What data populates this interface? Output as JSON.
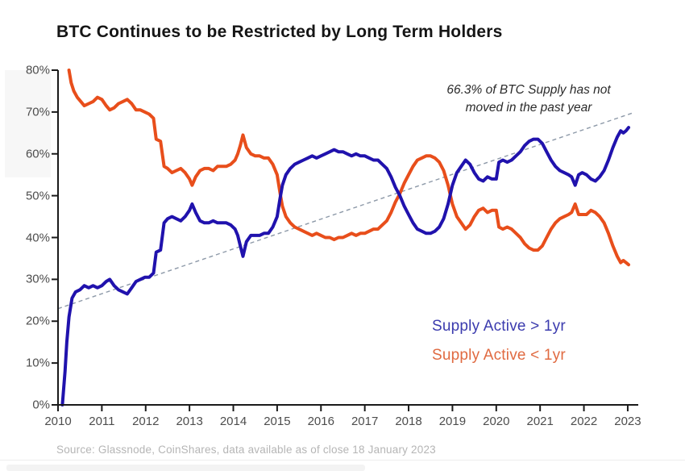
{
  "header": {
    "title": "BTC Continues to be Restricted by Long Term Holders"
  },
  "annotation": {
    "text": "66.3% of BTC Supply has not moved in the past year"
  },
  "legend": [
    {
      "label": "Supply  Active > 1yr",
      "color": "#3b3bae"
    },
    {
      "label": "Supply Active < 1yr",
      "color": "#e06a41"
    }
  ],
  "footer": {
    "source": "Source: Glassnode, CoinShares, data available as of close 18 January 2023"
  },
  "chart_data": {
    "type": "line",
    "title": "BTC Continues to be Restricted by Long Term Holders",
    "xlabel": "",
    "ylabel": "",
    "xlim": [
      2009.95,
      2023.3
    ],
    "ylim": [
      0,
      80
    ],
    "grid": false,
    "legend_position": "lower right",
    "x_ticks": [
      2010,
      2011,
      2012,
      2013,
      2014,
      2015,
      2016,
      2017,
      2018,
      2019,
      2020,
      2021,
      2022,
      2023
    ],
    "y_tick_values": [
      0,
      10,
      20,
      30,
      40,
      50,
      60,
      70,
      80
    ],
    "y_tick_suffix": "%",
    "annotation": "66.3% of BTC Supply has not moved in the past year",
    "axis_color": "#1a1a1a",
    "series": [
      {
        "name": "Supply Active > 1yr",
        "color": "#2012ad",
        "width": 4,
        "points": [
          [
            2010.1,
            0
          ],
          [
            2010.16,
            8
          ],
          [
            2010.2,
            15
          ],
          [
            2010.25,
            21
          ],
          [
            2010.32,
            25.5
          ],
          [
            2010.4,
            27
          ],
          [
            2010.5,
            27.5
          ],
          [
            2010.6,
            28.5
          ],
          [
            2010.7,
            28
          ],
          [
            2010.8,
            28.5
          ],
          [
            2010.9,
            28
          ],
          [
            2011.0,
            28.5
          ],
          [
            2011.1,
            29.5
          ],
          [
            2011.18,
            30
          ],
          [
            2011.28,
            28.5
          ],
          [
            2011.38,
            27.5
          ],
          [
            2011.48,
            27
          ],
          [
            2011.58,
            26.5
          ],
          [
            2011.68,
            28
          ],
          [
            2011.78,
            29.5
          ],
          [
            2011.88,
            30
          ],
          [
            2011.98,
            30.5
          ],
          [
            2012.08,
            30.5
          ],
          [
            2012.18,
            31.5
          ],
          [
            2012.24,
            36.5
          ],
          [
            2012.34,
            37
          ],
          [
            2012.42,
            43.5
          ],
          [
            2012.5,
            44.5
          ],
          [
            2012.6,
            45
          ],
          [
            2012.7,
            44.5
          ],
          [
            2012.8,
            44
          ],
          [
            2012.9,
            45
          ],
          [
            2013.0,
            46.5
          ],
          [
            2013.06,
            48
          ],
          [
            2013.14,
            46
          ],
          [
            2013.24,
            44
          ],
          [
            2013.34,
            43.5
          ],
          [
            2013.44,
            43.5
          ],
          [
            2013.54,
            44
          ],
          [
            2013.64,
            43.5
          ],
          [
            2013.74,
            43.5
          ],
          [
            2013.84,
            43.5
          ],
          [
            2013.94,
            43
          ],
          [
            2014.04,
            42
          ],
          [
            2014.1,
            40.5
          ],
          [
            2014.16,
            38
          ],
          [
            2014.22,
            35.5
          ],
          [
            2014.3,
            39
          ],
          [
            2014.4,
            40.5
          ],
          [
            2014.5,
            40.5
          ],
          [
            2014.6,
            40.5
          ],
          [
            2014.7,
            41
          ],
          [
            2014.8,
            41
          ],
          [
            2014.9,
            42.5
          ],
          [
            2015.0,
            45
          ],
          [
            2015.06,
            49
          ],
          [
            2015.12,
            52.5
          ],
          [
            2015.2,
            55
          ],
          [
            2015.3,
            56.5
          ],
          [
            2015.4,
            57.5
          ],
          [
            2015.5,
            58
          ],
          [
            2015.6,
            58.5
          ],
          [
            2015.7,
            59
          ],
          [
            2015.8,
            59.5
          ],
          [
            2015.9,
            59
          ],
          [
            2016.0,
            59.5
          ],
          [
            2016.1,
            60
          ],
          [
            2016.2,
            60.5
          ],
          [
            2016.3,
            61
          ],
          [
            2016.4,
            60.5
          ],
          [
            2016.5,
            60.5
          ],
          [
            2016.6,
            60
          ],
          [
            2016.7,
            59.5
          ],
          [
            2016.8,
            60
          ],
          [
            2016.9,
            59.5
          ],
          [
            2017.0,
            59.5
          ],
          [
            2017.1,
            59
          ],
          [
            2017.2,
            58.5
          ],
          [
            2017.3,
            58.5
          ],
          [
            2017.4,
            57.5
          ],
          [
            2017.5,
            56.5
          ],
          [
            2017.6,
            54.5
          ],
          [
            2017.7,
            52
          ],
          [
            2017.8,
            50
          ],
          [
            2017.9,
            47.5
          ],
          [
            2018.0,
            45.5
          ],
          [
            2018.1,
            43.5
          ],
          [
            2018.2,
            42
          ],
          [
            2018.3,
            41.5
          ],
          [
            2018.4,
            41
          ],
          [
            2018.5,
            41
          ],
          [
            2018.6,
            41.5
          ],
          [
            2018.7,
            42.5
          ],
          [
            2018.8,
            44.5
          ],
          [
            2018.9,
            48
          ],
          [
            2019.0,
            52.5
          ],
          [
            2019.1,
            55.5
          ],
          [
            2019.2,
            57
          ],
          [
            2019.3,
            58.5
          ],
          [
            2019.4,
            57.5
          ],
          [
            2019.5,
            55.5
          ],
          [
            2019.6,
            54
          ],
          [
            2019.7,
            53.5
          ],
          [
            2019.8,
            54.5
          ],
          [
            2019.9,
            54
          ],
          [
            2020.0,
            54
          ],
          [
            2020.06,
            58
          ],
          [
            2020.15,
            58.5
          ],
          [
            2020.25,
            58
          ],
          [
            2020.35,
            58.5
          ],
          [
            2020.45,
            59.5
          ],
          [
            2020.55,
            60.5
          ],
          [
            2020.65,
            62
          ],
          [
            2020.75,
            63
          ],
          [
            2020.85,
            63.5
          ],
          [
            2020.95,
            63.5
          ],
          [
            2021.05,
            62.5
          ],
          [
            2021.15,
            60.5
          ],
          [
            2021.25,
            58.5
          ],
          [
            2021.35,
            57
          ],
          [
            2021.45,
            56
          ],
          [
            2021.55,
            55.5
          ],
          [
            2021.65,
            55
          ],
          [
            2021.72,
            54.5
          ],
          [
            2021.8,
            52.5
          ],
          [
            2021.88,
            55
          ],
          [
            2021.96,
            55.5
          ],
          [
            2022.06,
            55
          ],
          [
            2022.16,
            54
          ],
          [
            2022.26,
            53.5
          ],
          [
            2022.36,
            54.5
          ],
          [
            2022.46,
            56
          ],
          [
            2022.56,
            58.5
          ],
          [
            2022.66,
            61.5
          ],
          [
            2022.76,
            64
          ],
          [
            2022.84,
            65.5
          ],
          [
            2022.9,
            65
          ],
          [
            2022.96,
            65.5
          ],
          [
            2023.02,
            66.3
          ]
        ]
      },
      {
        "name": "Supply Active < 1yr",
        "color": "#e84e1b",
        "width": 4,
        "points": [
          [
            2010.25,
            80
          ],
          [
            2010.3,
            77
          ],
          [
            2010.36,
            75
          ],
          [
            2010.44,
            73.5
          ],
          [
            2010.52,
            72.5
          ],
          [
            2010.6,
            71.5
          ],
          [
            2010.7,
            72
          ],
          [
            2010.8,
            72.5
          ],
          [
            2010.9,
            73.5
          ],
          [
            2011.0,
            73
          ],
          [
            2011.1,
            71.5
          ],
          [
            2011.18,
            70.5
          ],
          [
            2011.28,
            71
          ],
          [
            2011.38,
            72
          ],
          [
            2011.48,
            72.5
          ],
          [
            2011.58,
            73
          ],
          [
            2011.68,
            72
          ],
          [
            2011.78,
            70.5
          ],
          [
            2011.88,
            70.5
          ],
          [
            2011.98,
            70
          ],
          [
            2012.08,
            69.5
          ],
          [
            2012.18,
            68.5
          ],
          [
            2012.24,
            63.5
          ],
          [
            2012.34,
            63
          ],
          [
            2012.42,
            57
          ],
          [
            2012.5,
            56.5
          ],
          [
            2012.6,
            55.5
          ],
          [
            2012.7,
            56
          ],
          [
            2012.8,
            56.5
          ],
          [
            2012.9,
            55.5
          ],
          [
            2013.0,
            54
          ],
          [
            2013.06,
            52.5
          ],
          [
            2013.14,
            54.5
          ],
          [
            2013.24,
            56
          ],
          [
            2013.34,
            56.5
          ],
          [
            2013.44,
            56.5
          ],
          [
            2013.54,
            56
          ],
          [
            2013.64,
            57
          ],
          [
            2013.74,
            57
          ],
          [
            2013.84,
            57
          ],
          [
            2013.94,
            57.5
          ],
          [
            2014.04,
            58.5
          ],
          [
            2014.1,
            60
          ],
          [
            2014.16,
            62
          ],
          [
            2014.22,
            64.5
          ],
          [
            2014.3,
            61.5
          ],
          [
            2014.4,
            60
          ],
          [
            2014.5,
            59.5
          ],
          [
            2014.6,
            59.5
          ],
          [
            2014.7,
            59
          ],
          [
            2014.8,
            59
          ],
          [
            2014.9,
            57.5
          ],
          [
            2015.0,
            55
          ],
          [
            2015.06,
            51
          ],
          [
            2015.12,
            47.5
          ],
          [
            2015.2,
            45
          ],
          [
            2015.3,
            43.5
          ],
          [
            2015.4,
            42.5
          ],
          [
            2015.5,
            42
          ],
          [
            2015.6,
            41.5
          ],
          [
            2015.7,
            41
          ],
          [
            2015.8,
            40.5
          ],
          [
            2015.9,
            41
          ],
          [
            2016.0,
            40.5
          ],
          [
            2016.1,
            40
          ],
          [
            2016.2,
            40
          ],
          [
            2016.3,
            39.5
          ],
          [
            2016.4,
            40
          ],
          [
            2016.5,
            40
          ],
          [
            2016.6,
            40.5
          ],
          [
            2016.7,
            41
          ],
          [
            2016.8,
            40.5
          ],
          [
            2016.9,
            41
          ],
          [
            2017.0,
            41
          ],
          [
            2017.1,
            41.5
          ],
          [
            2017.2,
            42
          ],
          [
            2017.3,
            42
          ],
          [
            2017.4,
            43
          ],
          [
            2017.5,
            44
          ],
          [
            2017.6,
            46
          ],
          [
            2017.7,
            48.5
          ],
          [
            2017.8,
            50.5
          ],
          [
            2017.9,
            53
          ],
          [
            2018.0,
            55
          ],
          [
            2018.1,
            57
          ],
          [
            2018.2,
            58.5
          ],
          [
            2018.3,
            59
          ],
          [
            2018.4,
            59.5
          ],
          [
            2018.5,
            59.5
          ],
          [
            2018.6,
            59
          ],
          [
            2018.7,
            58
          ],
          [
            2018.8,
            56
          ],
          [
            2018.9,
            52.5
          ],
          [
            2019.0,
            48
          ],
          [
            2019.1,
            45
          ],
          [
            2019.2,
            43.5
          ],
          [
            2019.3,
            42
          ],
          [
            2019.4,
            43
          ],
          [
            2019.5,
            45
          ],
          [
            2019.6,
            46.5
          ],
          [
            2019.7,
            47
          ],
          [
            2019.8,
            46
          ],
          [
            2019.9,
            46.5
          ],
          [
            2020.0,
            46.5
          ],
          [
            2020.06,
            42.5
          ],
          [
            2020.15,
            42
          ],
          [
            2020.25,
            42.5
          ],
          [
            2020.35,
            42
          ],
          [
            2020.45,
            41
          ],
          [
            2020.55,
            40
          ],
          [
            2020.65,
            38.5
          ],
          [
            2020.75,
            37.5
          ],
          [
            2020.85,
            37
          ],
          [
            2020.95,
            37
          ],
          [
            2021.05,
            38
          ],
          [
            2021.15,
            40
          ],
          [
            2021.25,
            42
          ],
          [
            2021.35,
            43.5
          ],
          [
            2021.45,
            44.5
          ],
          [
            2021.55,
            45
          ],
          [
            2021.65,
            45.5
          ],
          [
            2021.72,
            46
          ],
          [
            2021.8,
            48
          ],
          [
            2021.88,
            45.5
          ],
          [
            2021.96,
            45.5
          ],
          [
            2022.06,
            45.5
          ],
          [
            2022.16,
            46.5
          ],
          [
            2022.26,
            46
          ],
          [
            2022.36,
            45
          ],
          [
            2022.46,
            43.5
          ],
          [
            2022.56,
            41
          ],
          [
            2022.66,
            38
          ],
          [
            2022.76,
            35.5
          ],
          [
            2022.84,
            34
          ],
          [
            2022.9,
            34.5
          ],
          [
            2022.96,
            34
          ],
          [
            2023.02,
            33.5
          ]
        ]
      }
    ],
    "trendline": {
      "style": "dashed",
      "color": "#8d99a8",
      "points": [
        [
          2010.0,
          23
        ],
        [
          2023.12,
          69.8
        ]
      ]
    }
  }
}
